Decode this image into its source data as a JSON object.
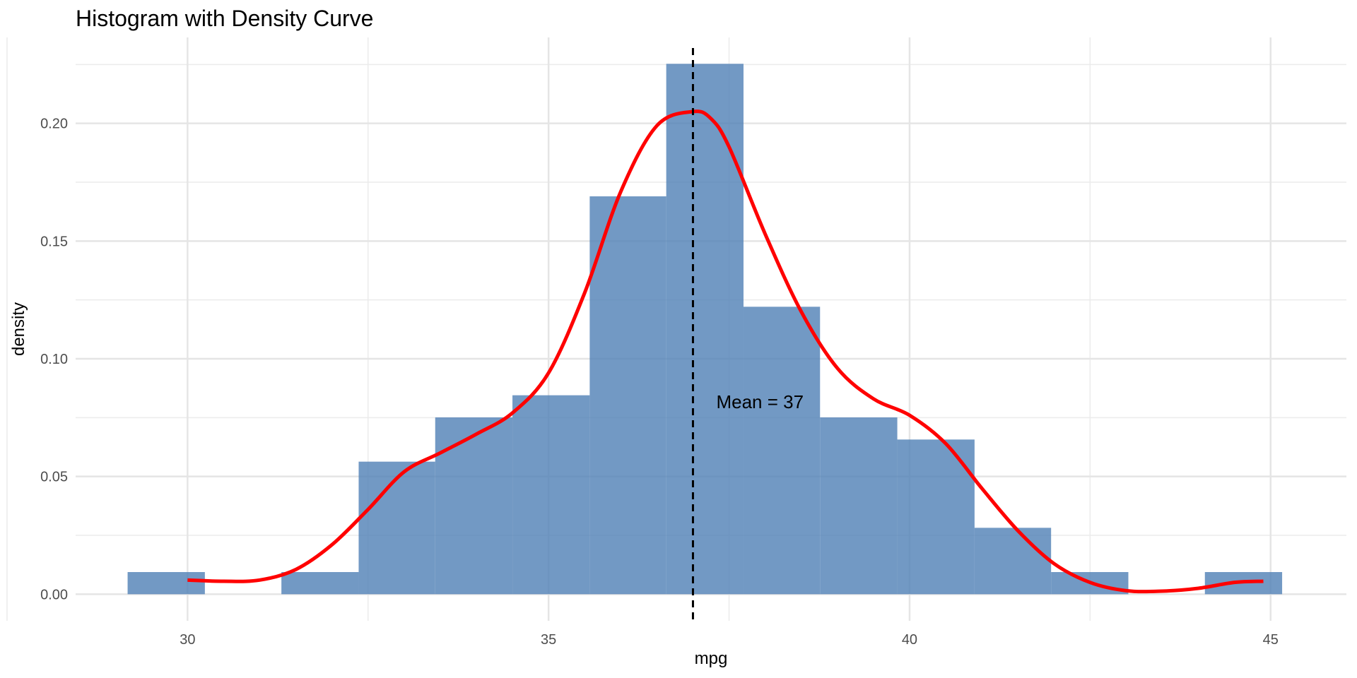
{
  "chart_data": {
    "type": "histogram",
    "title": "Histogram with Density Curve",
    "xlabel": "mpg",
    "ylabel": "density",
    "xlim": [
      28.45,
      46.05
    ],
    "ylim": [
      -0.0113,
      0.2365
    ],
    "x_ticks": [
      30,
      35,
      40,
      45
    ],
    "x_tick_labels": [
      "30",
      "35",
      "40",
      "45"
    ],
    "y_ticks": [
      0.0,
      0.05,
      0.1,
      0.15,
      0.2
    ],
    "y_tick_labels": [
      "0.00",
      "0.05",
      "0.10",
      "0.15",
      "0.20"
    ],
    "grid": true,
    "bins": [
      {
        "x0": 29.17,
        "x1": 30.24,
        "density": 0.0094
      },
      {
        "x0": 30.24,
        "x1": 31.3,
        "density": 0.0
      },
      {
        "x0": 31.3,
        "x1": 32.37,
        "density": 0.0094
      },
      {
        "x0": 32.37,
        "x1": 33.43,
        "density": 0.0563
      },
      {
        "x0": 33.43,
        "x1": 34.5,
        "density": 0.0751
      },
      {
        "x0": 34.5,
        "x1": 35.57,
        "density": 0.0845
      },
      {
        "x0": 35.57,
        "x1": 36.63,
        "density": 0.169
      },
      {
        "x0": 36.63,
        "x1": 37.7,
        "density": 0.2253
      },
      {
        "x0": 37.7,
        "x1": 38.76,
        "density": 0.1221
      },
      {
        "x0": 38.76,
        "x1": 39.83,
        "density": 0.0751
      },
      {
        "x0": 39.83,
        "x1": 40.9,
        "density": 0.0657
      },
      {
        "x0": 40.9,
        "x1": 41.96,
        "density": 0.0282
      },
      {
        "x0": 41.96,
        "x1": 43.03,
        "density": 0.0094
      },
      {
        "x0": 43.03,
        "x1": 44.09,
        "density": 0.0
      },
      {
        "x0": 44.09,
        "x1": 45.16,
        "density": 0.0094
      }
    ],
    "density_curve": {
      "x": [
        30.0,
        30.5,
        31.0,
        31.5,
        32.0,
        32.5,
        33.0,
        33.5,
        34.0,
        34.5,
        35.0,
        35.5,
        36.0,
        36.5,
        37.0,
        37.25,
        37.5,
        38.0,
        38.5,
        39.0,
        39.5,
        40.0,
        40.5,
        41.0,
        41.5,
        42.0,
        42.5,
        43.0,
        43.5,
        44.0,
        44.5,
        44.9
      ],
      "y": [
        0.006,
        0.0055,
        0.006,
        0.0105,
        0.021,
        0.036,
        0.052,
        0.06,
        0.068,
        0.077,
        0.094,
        0.128,
        0.171,
        0.199,
        0.205,
        0.202,
        0.19,
        0.153,
        0.12,
        0.096,
        0.083,
        0.076,
        0.064,
        0.045,
        0.027,
        0.013,
        0.005,
        0.0015,
        0.0013,
        0.0025,
        0.005,
        0.0055
      ],
      "color": "#ff0000"
    },
    "mean": 37.0,
    "annotation": "Mean = 37",
    "bar_color": "#4f80b5",
    "bar_opacity": 0.8
  }
}
